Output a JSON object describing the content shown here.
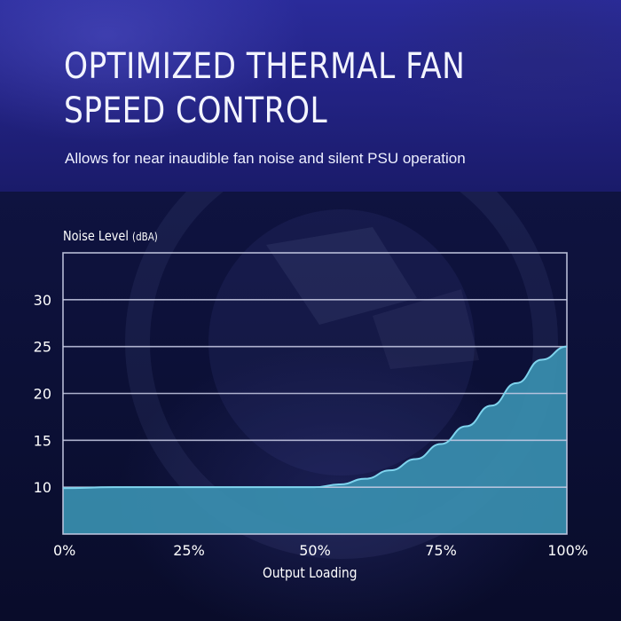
{
  "header": {
    "title_line1": "OPTIMIZED THERMAL FAN",
    "title_line2": "SPEED CONTROL",
    "subtitle": "Allows for near inaudible fan noise and silent PSU operation"
  },
  "colors": {
    "area_fill": "#3a8fb0",
    "curve_line": "#7fd4ee",
    "grid": "#c9cde6"
  },
  "chart_data": {
    "type": "area",
    "ylabel": "Noise Level",
    "ylabel_unit": "(dBA)",
    "xlabel": "Output Loading",
    "x_ticks": [
      "0%",
      "25%",
      "50%",
      "75%",
      "100%"
    ],
    "x_tick_values": [
      0,
      25,
      50,
      75,
      100
    ],
    "y_ticks": [
      10,
      15,
      20,
      25,
      30
    ],
    "xlim": [
      0,
      100
    ],
    "ylim": [
      5,
      35
    ],
    "grid": true,
    "series": [
      {
        "x": [
          0,
          10,
          20,
          30,
          40,
          50,
          55,
          60,
          65,
          70,
          75,
          80,
          85,
          90,
          95,
          100
        ],
        "y": [
          9.9,
          10.0,
          10.0,
          10.0,
          10.0,
          10.0,
          10.3,
          10.9,
          11.8,
          13.0,
          14.6,
          16.5,
          18.7,
          21.1,
          23.6,
          25.0
        ]
      }
    ]
  }
}
